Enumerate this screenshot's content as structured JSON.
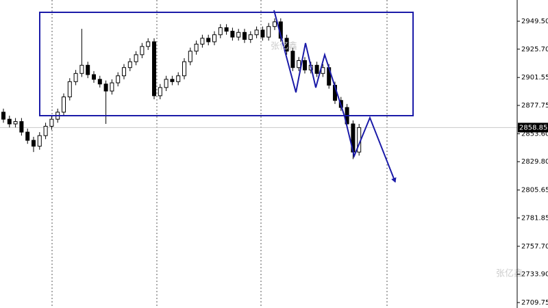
{
  "chart_data": {
    "type": "candlestick",
    "open": [
      2872,
      2866,
      2862,
      2864,
      2855,
      2848,
      2843,
      2852,
      2860,
      2866,
      2872,
      2885,
      2898,
      2905,
      2912,
      2904,
      2900,
      2896,
      2890,
      2897,
      2903,
      2910,
      2915,
      2921,
      2928,
      2932,
      2886,
      2893,
      2900,
      2898,
      2903,
      2915,
      2924,
      2930,
      2935,
      2932,
      2938,
      2944,
      2941,
      2936,
      2940,
      2934,
      2938,
      2942,
      2936,
      2945,
      2949,
      2935,
      2924,
      2910,
      2916,
      2908,
      2912,
      2905,
      2910,
      2895,
      2882,
      2876,
      2862,
      2838
    ],
    "high": [
      2875,
      2869,
      2867,
      2867,
      2858,
      2851,
      2855,
      2863,
      2869,
      2875,
      2888,
      2901,
      2908,
      2943,
      2915,
      2907,
      2903,
      2899,
      2900,
      2906,
      2913,
      2918,
      2924,
      2931,
      2935,
      2935,
      2896,
      2903,
      2903,
      2906,
      2918,
      2927,
      2933,
      2938,
      2938,
      2941,
      2947,
      2947,
      2944,
      2943,
      2943,
      2941,
      2945,
      2945,
      2948,
      2952,
      2952,
      2938,
      2927,
      2919,
      2919,
      2915,
      2915,
      2913,
      2913,
      2898,
      2885,
      2879,
      2865,
      2862
    ],
    "low": [
      2863,
      2859,
      2859,
      2852,
      2845,
      2838,
      2840,
      2849,
      2857,
      2863,
      2869,
      2882,
      2895,
      2902,
      2901,
      2897,
      2893,
      2862,
      2887,
      2894,
      2900,
      2907,
      2912,
      2918,
      2925,
      2883,
      2883,
      2890,
      2895,
      2895,
      2900,
      2912,
      2921,
      2927,
      2929,
      2929,
      2935,
      2938,
      2933,
      2933,
      2931,
      2931,
      2935,
      2933,
      2933,
      2942,
      2932,
      2921,
      2907,
      2907,
      2905,
      2905,
      2902,
      2902,
      2892,
      2879,
      2873,
      2859,
      2832,
      2835
    ],
    "close": [
      2866,
      2862,
      2864,
      2855,
      2848,
      2843,
      2852,
      2860,
      2866,
      2872,
      2885,
      2898,
      2905,
      2912,
      2904,
      2900,
      2896,
      2890,
      2897,
      2903,
      2910,
      2915,
      2921,
      2928,
      2932,
      2886,
      2893,
      2900,
      2898,
      2903,
      2915,
      2924,
      2930,
      2935,
      2932,
      2938,
      2944,
      2941,
      2936,
      2940,
      2934,
      2938,
      2942,
      2936,
      2945,
      2949,
      2935,
      2924,
      2910,
      2916,
      2908,
      2912,
      2905,
      2910,
      2895,
      2882,
      2876,
      2862,
      2838,
      2858.85
    ],
    "current_price": 2858.85,
    "ylim": [
      2705.1,
      2967.6
    ],
    "yticks": [
      {
        "value": 2949.5,
        "label": "2949.50"
      },
      {
        "value": 2925.7,
        "label": "2925.70"
      },
      2901.55,
      2877.75,
      {
        "value": 2853.6,
        "label": "2853.60"
      },
      {
        "value": 2829.8,
        "label": "2829.80"
      },
      2805.65,
      2781.85,
      {
        "value": 2757.7,
        "label": "2757.70"
      },
      {
        "value": 2733.9,
        "label": "2733.90"
      },
      2709.75
    ],
    "watermark": "张亿鑫"
  }
}
